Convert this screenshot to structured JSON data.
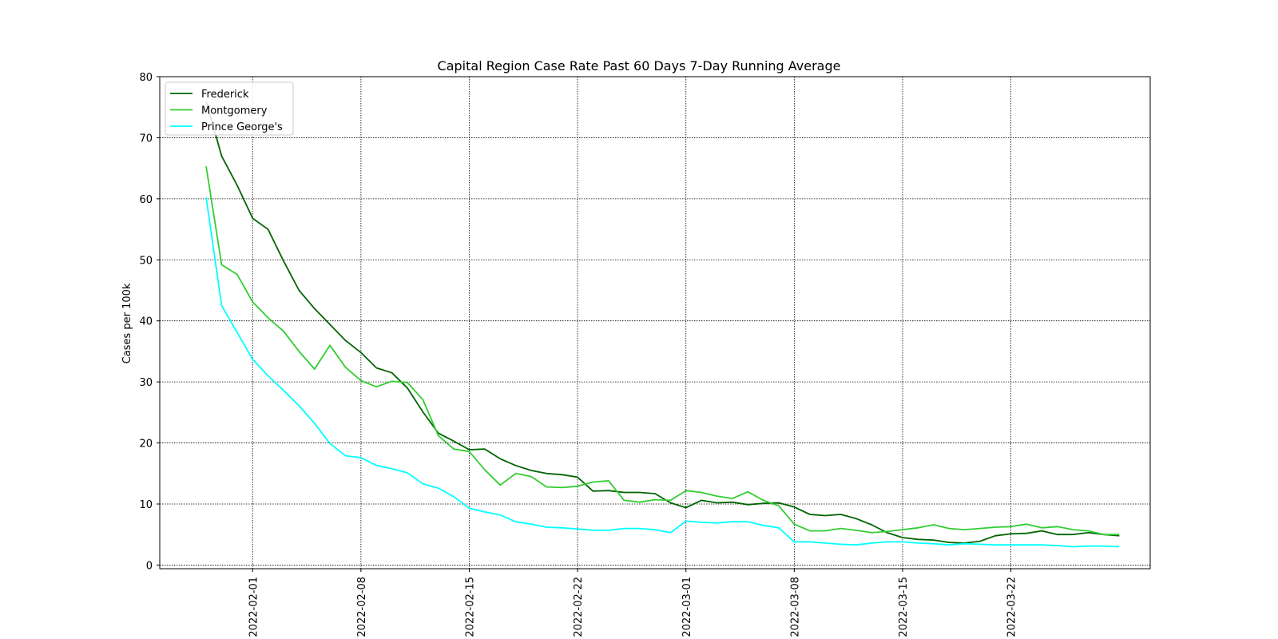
{
  "chart_data": {
    "type": "line",
    "title": "Capital Region Case Rate  Past 60 Days 7-Day Running Average",
    "xlabel": "",
    "ylabel": "Cases per 100k",
    "x_start": "2022-01-29",
    "x_tick_labels": [
      "2022-02-01",
      "2022-02-08",
      "2022-02-15",
      "2022-02-22",
      "2022-03-01",
      "2022-03-08",
      "2022-03-15",
      "2022-03-22"
    ],
    "y_ticks": [
      0,
      10,
      20,
      30,
      40,
      50,
      60,
      70,
      80
    ],
    "ylim": [
      -0.6,
      80
    ],
    "xlim": [
      "2022-01-26",
      "2022-03-31"
    ],
    "grid": true,
    "legend_position": "top-left",
    "series": [
      {
        "name": "Frederick",
        "color": "#006400",
        "values": [
          76.0,
          67.0,
          62.2,
          56.8,
          55.0,
          49.8,
          45.0,
          42.0,
          39.4,
          36.8,
          34.8,
          32.3,
          31.5,
          29.0,
          25.1,
          21.6,
          20.3,
          18.9,
          19.0,
          17.4,
          16.3,
          15.5,
          15.0,
          14.8,
          14.4,
          12.1,
          12.2,
          11.9,
          11.9,
          11.7,
          10.2,
          9.4,
          10.6,
          10.2,
          10.3,
          9.9,
          10.1,
          10.2,
          9.5,
          8.3,
          8.1,
          8.3,
          7.6,
          6.6,
          5.3,
          4.5,
          4.2,
          4.1,
          3.7,
          3.6,
          3.9,
          4.8,
          5.1,
          5.2,
          5.6,
          5.0,
          5.0,
          5.3,
          5.0,
          4.8
        ]
      },
      {
        "name": "Montgomery",
        "color": "#32cd32",
        "values": [
          65.3,
          49.2,
          47.6,
          43.1,
          40.5,
          38.3,
          35.0,
          32.1,
          36.0,
          32.4,
          30.2,
          29.2,
          30.1,
          29.9,
          27.1,
          21.2,
          19.0,
          18.6,
          15.6,
          13.1,
          15.0,
          14.5,
          12.8,
          12.7,
          12.9,
          13.6,
          13.8,
          10.6,
          10.3,
          10.7,
          10.6,
          12.2,
          11.9,
          11.3,
          10.9,
          12.0,
          10.6,
          9.7,
          6.7,
          5.6,
          5.6,
          6.0,
          5.7,
          5.3,
          5.5,
          5.8,
          6.1,
          6.6,
          6.0,
          5.8,
          6.0,
          6.2,
          6.3,
          6.7,
          6.1,
          6.3,
          5.8,
          5.6,
          5.0,
          5.0
        ]
      },
      {
        "name": "Prince George's",
        "color": "#00ffff",
        "values": [
          60.2,
          42.5,
          38.1,
          33.7,
          31.0,
          28.6,
          26.1,
          23.2,
          19.9,
          17.9,
          17.6,
          16.3,
          15.8,
          15.1,
          13.3,
          12.6,
          11.2,
          9.3,
          8.7,
          8.2,
          7.1,
          6.7,
          6.2,
          6.1,
          5.9,
          5.7,
          5.7,
          6.0,
          6.0,
          5.8,
          5.3,
          7.2,
          7.0,
          6.9,
          7.1,
          7.1,
          6.5,
          6.1,
          3.8,
          3.8,
          3.6,
          3.4,
          3.3,
          3.6,
          3.8,
          3.8,
          3.6,
          3.5,
          3.3,
          3.5,
          3.4,
          3.3,
          3.3,
          3.3,
          3.3,
          3.2,
          3.0,
          3.1,
          3.1,
          3.0
        ]
      }
    ]
  }
}
